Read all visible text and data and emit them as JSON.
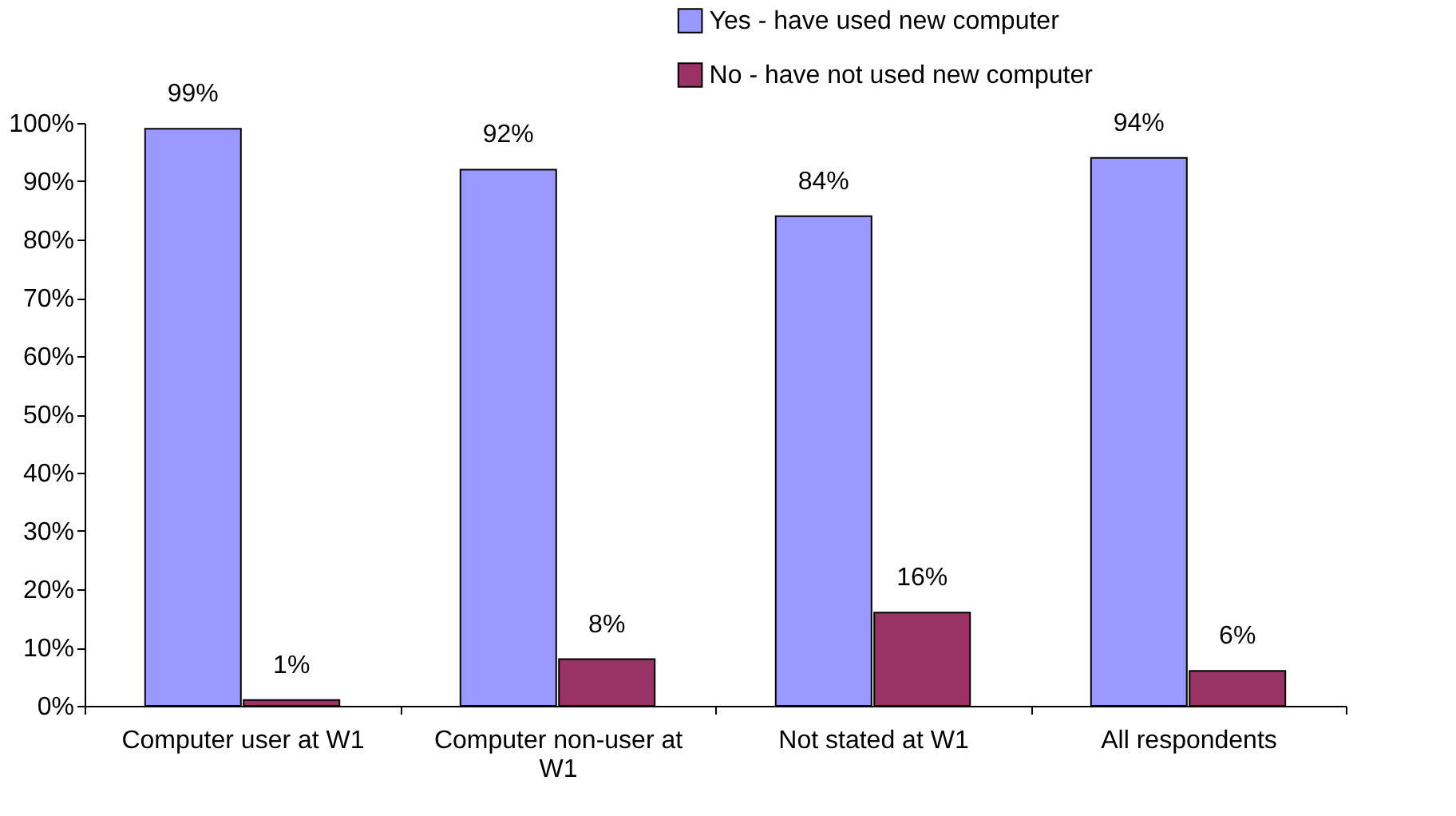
{
  "chart_data": {
    "type": "bar",
    "categories": [
      "Computer user at W1",
      "Computer non-user at W1",
      "Not stated at W1",
      "All respondents"
    ],
    "series": [
      {
        "name": "Yes - have used new computer",
        "color": "#9999ff",
        "values": [
          99,
          92,
          84,
          94
        ],
        "value_labels": [
          "99%",
          "92%",
          "84%",
          "94%"
        ]
      },
      {
        "name": "No - have not used new computer",
        "color": "#993366",
        "values": [
          1,
          8,
          16,
          6
        ],
        "value_labels": [
          "1%",
          "8%",
          "16%",
          "6%"
        ]
      }
    ],
    "ylim": [
      0,
      100
    ],
    "yticks": [
      {
        "value": 0,
        "label": "0%"
      },
      {
        "value": 10,
        "label": "10%"
      },
      {
        "value": 20,
        "label": "20%"
      },
      {
        "value": 30,
        "label": "30%"
      },
      {
        "value": 40,
        "label": "40%"
      },
      {
        "value": 50,
        "label": "50%"
      },
      {
        "value": 60,
        "label": "60%"
      },
      {
        "value": 70,
        "label": "70%"
      },
      {
        "value": 80,
        "label": "80%"
      },
      {
        "value": 90,
        "label": "90%"
      },
      {
        "value": 100,
        "label": "100%"
      }
    ],
    "grid": false,
    "legend": "top right"
  }
}
